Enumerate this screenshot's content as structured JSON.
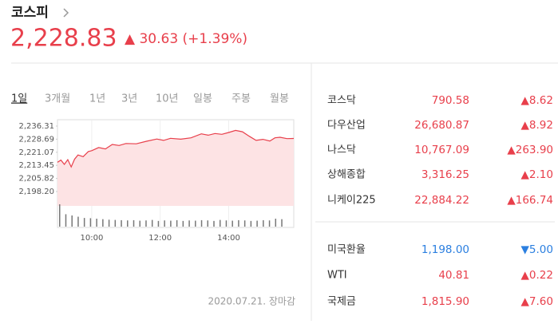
{
  "header": {
    "title": "코스피",
    "price": "2,228.83",
    "change": "▲ 30.63 (+1.39%)"
  },
  "tabs": [
    "1일",
    "3개월",
    "1년",
    "3년",
    "10년",
    "일봉",
    "주봉",
    "월봉"
  ],
  "chart": {
    "type": "line",
    "color": "#e83f4b",
    "x": [
      9.0,
      9.1,
      9.2,
      9.3,
      9.4,
      9.5,
      9.6,
      9.75,
      9.9,
      10.0,
      10.2,
      10.4,
      10.6,
      10.8,
      11.0,
      11.3,
      11.6,
      11.9,
      12.1,
      12.3,
      12.6,
      12.9,
      13.2,
      13.4,
      13.6,
      13.8,
      14.0,
      14.2,
      14.4,
      14.6,
      14.8,
      15.0,
      15.2,
      15.35,
      15.5,
      15.7,
      15.9
    ],
    "values": [
      2215.2,
      2216.5,
      2214.0,
      2216.8,
      2212.5,
      2217.0,
      2219.5,
      2218.5,
      2221.5,
      2222.0,
      2223.8,
      2223.0,
      2225.6,
      2225.0,
      2226.2,
      2226.0,
      2227.5,
      2228.8,
      2228.0,
      2229.2,
      2228.7,
      2229.5,
      2231.8,
      2231.0,
      2232.0,
      2231.5,
      2232.6,
      2233.8,
      2233.0,
      2230.4,
      2228.0,
      2228.6,
      2227.6,
      2229.5,
      2229.8,
      2229.0,
      2229.1
    ],
    "volume": [
      9,
      5,
      4.5,
      4,
      3.5,
      3.4,
      3.2,
      3,
      2.8,
      2.7,
      2.6,
      2.5,
      2.6,
      2.4,
      2.5,
      2.7,
      2.3,
      2.5,
      2.4,
      2.6,
      2.3,
      2.5,
      2.4,
      2.6,
      2.5,
      2.3,
      2.7,
      2.5,
      2.4,
      2.6,
      2.5,
      2.3,
      2.4,
      2.6,
      2.5,
      3.2,
      3.0
    ],
    "xlim": [
      9,
      15.9
    ],
    "ylim": [
      2198.2,
      2236.31
    ],
    "yticks": [
      {
        "value": 2198.2,
        "label": "2,198.20"
      },
      {
        "value": 2205.82,
        "label": "2,205.82"
      },
      {
        "value": 2213.45,
        "label": "2,213.45"
      },
      {
        "value": 2221.07,
        "label": "2,221.07"
      },
      {
        "value": 2228.69,
        "label": "2,228.69"
      },
      {
        "value": 2236.31,
        "label": "2,236.31"
      }
    ],
    "xticks": [
      {
        "value": 10,
        "label": "10:00"
      },
      {
        "value": 12,
        "label": "12:00"
      },
      {
        "value": 14,
        "label": "14:00"
      }
    ]
  },
  "date": "2020.07.21. 장마감",
  "markets": [
    {
      "name": "코스닥",
      "value": "790.58",
      "change": "▲8.62",
      "dir": "up"
    },
    {
      "name": "다우산업",
      "value": "26,680.87",
      "change": "▲8.92",
      "dir": "up"
    },
    {
      "name": "나스닥",
      "value": "10,767.09",
      "change": "▲263.90",
      "dir": "up"
    },
    {
      "name": "상해종합",
      "value": "3,316.25",
      "change": "▲2.10",
      "dir": "up"
    },
    {
      "name": "니케이225",
      "value": "22,884.22",
      "change": "▲166.74",
      "dir": "up"
    }
  ],
  "commodities": [
    {
      "name": "미국환율",
      "value": "1,198.00",
      "change": "▼5.00",
      "dir": "down"
    },
    {
      "name": "WTI",
      "value": "40.81",
      "change": "▲0.22",
      "dir": "up"
    },
    {
      "name": "국제금",
      "value": "1,815.90",
      "change": "▲7.60",
      "dir": "up"
    }
  ]
}
